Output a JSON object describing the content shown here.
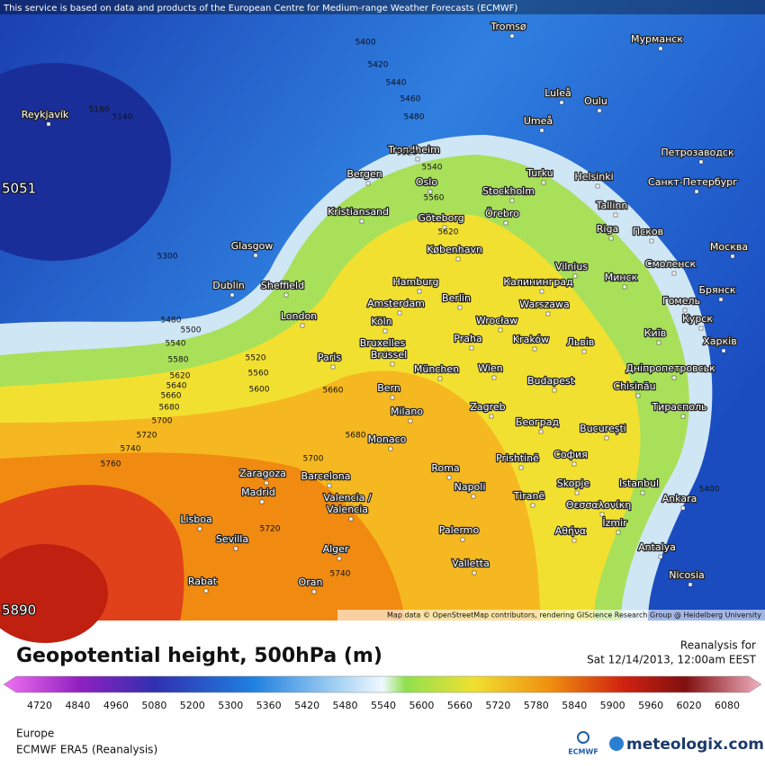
{
  "header": {
    "notice": "This service is based on data and products of the European Centre for Medium-range Weather Forecasts (ECMWF)"
  },
  "map": {
    "cities": [
      "Tromsø",
      "Мурманск",
      "Reykjavík",
      "Luleå",
      "Oulu",
      "Umeå",
      "Trondheim",
      "Петрозаводск",
      "Bergen",
      "Turku",
      "Helsinki",
      "Санкт-Петербург",
      "Oslo",
      "Stockholm",
      "Kristiansand",
      "Tallinn",
      "Göteborg",
      "Örebro",
      "Glasgow",
      "Riga",
      "Псков",
      "København",
      "Москва",
      "Vilnius",
      "Смоленск",
      "Dublin",
      "Sheffield",
      "Hamburg",
      "Калининград",
      "Минск",
      "Berlin",
      "Amsterdam",
      "Warszawa",
      "Гомель",
      "Брянск",
      "London",
      "Köln",
      "Wrocław",
      "Курск",
      "Київ",
      "Bruxelles",
      "Praha",
      "Kraków",
      "Львів",
      "Харків",
      "Brussel",
      "Paris",
      "München",
      "Wien",
      "Дніпропетровськ",
      "Bern",
      "Budapest",
      "Chisinău",
      "Milano",
      "Zagreb",
      "Тирасполь",
      "Београд",
      "București",
      "Monaco",
      "Prishtinë",
      "София",
      "Roma",
      "Zaragoza",
      "Barcelona",
      "Napoli",
      "Skopje",
      "Istanbul",
      "Madrid",
      "Valencia /",
      "Valencia",
      "Tiranë",
      "Ankara",
      "Θεσσαλονίκη",
      "Lisboa",
      "İzmir",
      "Palermo",
      "Αθήνα",
      "Sevilla",
      "Alger",
      "Antalya",
      "Valletta",
      "Nicosia",
      "Rabat",
      "Oran"
    ],
    "contour_labels": [
      5400,
      5420,
      5440,
      5460,
      5480,
      5520,
      5540,
      5560,
      5620,
      5180,
      5140,
      5300,
      5480,
      5500,
      5540,
      5580,
      5620,
      5640,
      5660,
      5680,
      5700,
      5720,
      5740,
      5760,
      5520,
      5560,
      5600,
      5660,
      5680,
      5700,
      5720,
      5740,
      5400
    ],
    "extremes": {
      "low": "5051",
      "high": "5890"
    },
    "attribution": "Map data © OpenStreetMap contributors, rendering GIScience Research Group @ Heidelberg University"
  },
  "legend": {
    "title": "Geopotential height, 500hPa (m)",
    "reanalysis_label": "Reanalysis for",
    "valid_time": "Sat 12/14/2013, 12:00am EEST",
    "colorbar_ticks": [
      4720,
      4840,
      4960,
      5080,
      5200,
      5300,
      5360,
      5420,
      5480,
      5540,
      5600,
      5660,
      5720,
      5780,
      5840,
      5900,
      5960,
      6020,
      6080
    ]
  },
  "footer": {
    "region": "Europe",
    "model": "ECMWF ERA5 (Reanalysis)",
    "logo_small": "ECMWF",
    "brand": "meteologix.com"
  }
}
